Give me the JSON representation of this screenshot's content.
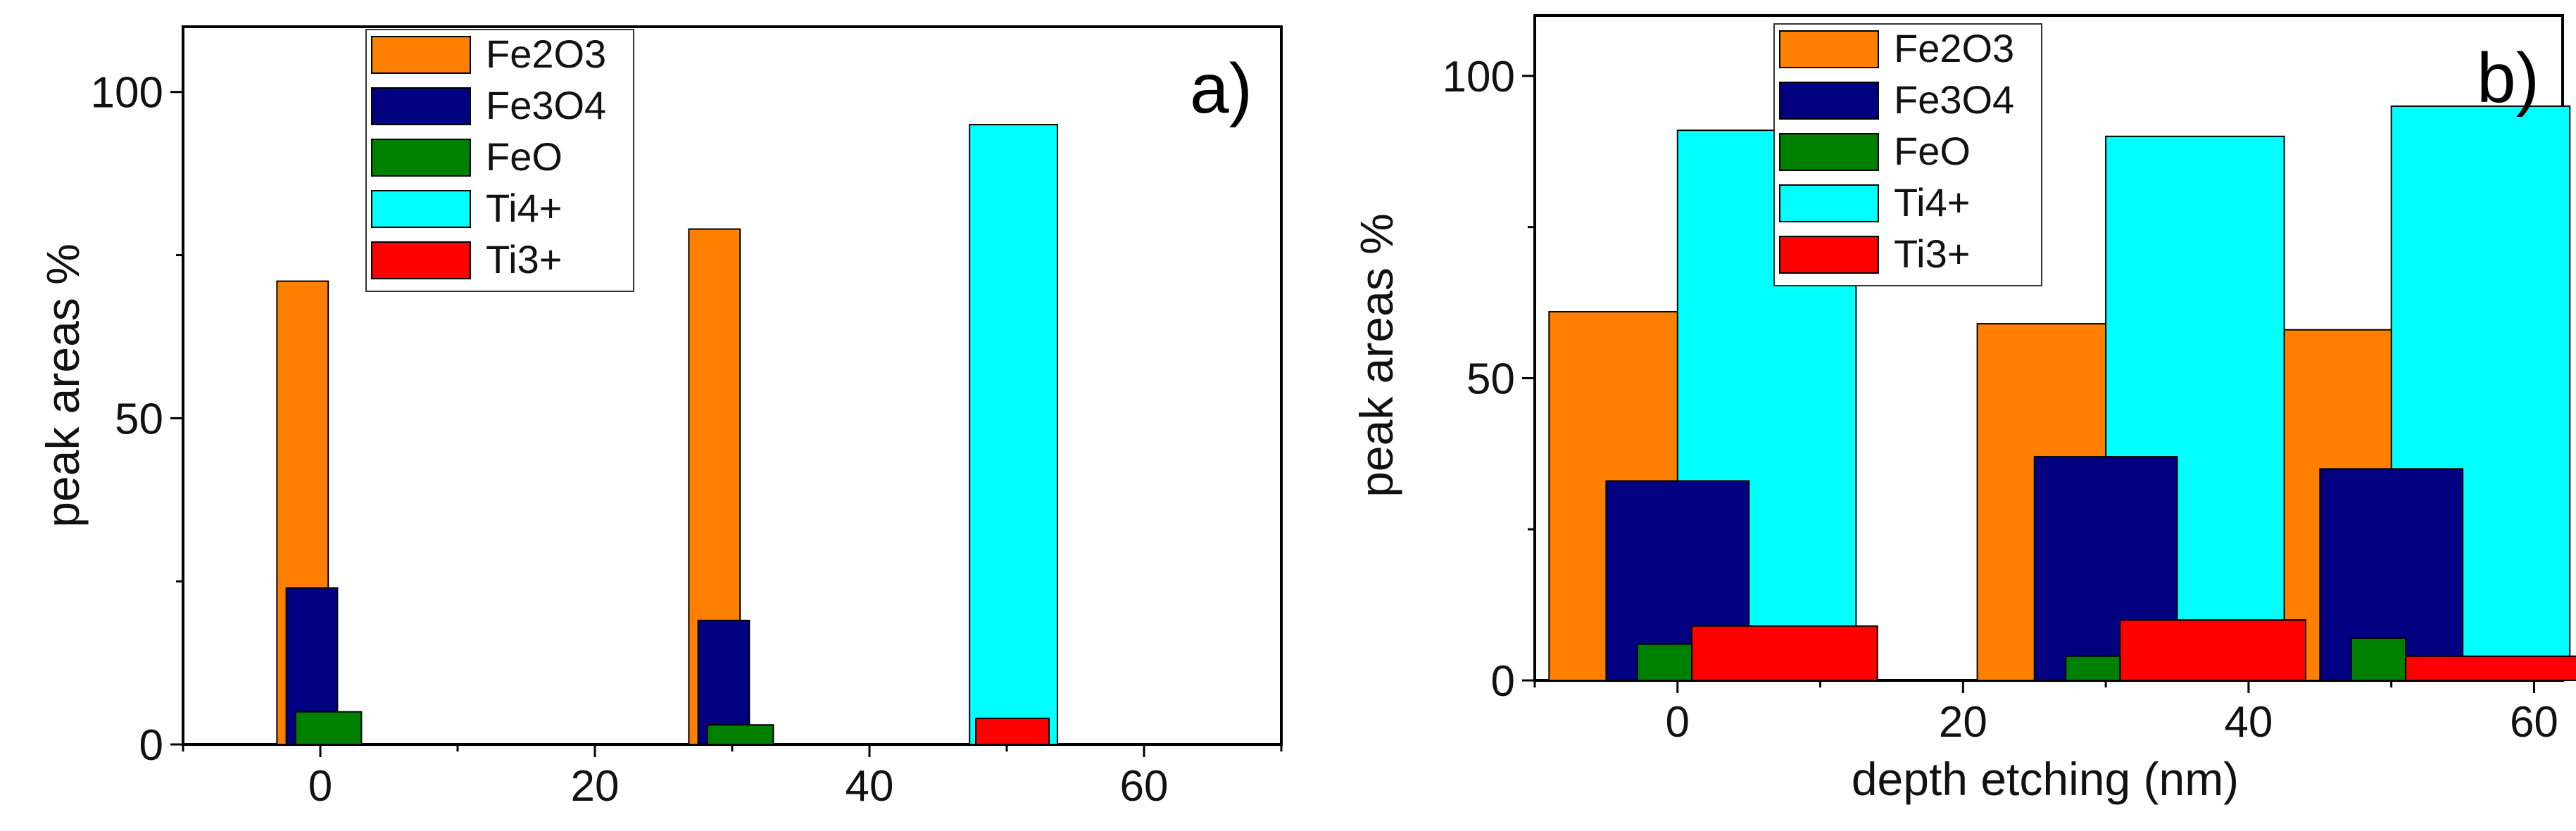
{
  "colors": {
    "Fe2O3": "#ff8000",
    "Fe3O4": "#000080",
    "FeO": "#008000",
    "Ti4+": "#00ffff",
    "Ti3+": "#ff0000"
  },
  "chart_data": [
    {
      "type": "bar",
      "panel_label": "a)",
      "title": "",
      "xlabel": "",
      "ylabel": "peak areas %",
      "xlim": [
        -10,
        70
      ],
      "ylim": [
        0,
        110
      ],
      "xticks": [
        0,
        20,
        40,
        60
      ],
      "yticks": [
        0,
        50,
        100
      ],
      "legend_position": "top-center",
      "series": [
        {
          "name": "Fe2O3",
          "x": [
            0,
            30
          ],
          "values": [
            71,
            79
          ]
        },
        {
          "name": "Fe3O4",
          "x": [
            0,
            30
          ],
          "values": [
            24,
            19
          ]
        },
        {
          "name": "FeO",
          "x": [
            0,
            30
          ],
          "values": [
            5,
            3
          ]
        },
        {
          "name": "Ti4+",
          "x": [
            50
          ],
          "values": [
            95
          ]
        },
        {
          "name": "Ti3+",
          "x": [
            50
          ],
          "values": [
            4
          ]
        }
      ]
    },
    {
      "type": "bar",
      "panel_label": "b)",
      "title": "",
      "xlabel": "depth etching (nm)",
      "ylabel": "peak areas %",
      "xlim": [
        -10,
        62
      ],
      "ylim": [
        0,
        110
      ],
      "xticks": [
        0,
        20,
        40,
        60
      ],
      "yticks": [
        0,
        50,
        100
      ],
      "legend_position": "top-center",
      "series": [
        {
          "name": "Fe2O3",
          "x": [
            0,
            30,
            50
          ],
          "values": [
            61,
            59,
            58
          ]
        },
        {
          "name": "Fe3O4",
          "x": [
            0,
            30,
            50
          ],
          "values": [
            33,
            37,
            35
          ]
        },
        {
          "name": "FeO",
          "x": [
            0,
            30,
            50
          ],
          "values": [
            6,
            4,
            7
          ]
        },
        {
          "name": "Ti4+",
          "x": [
            0,
            30,
            50
          ],
          "values": [
            91,
            90,
            95
          ]
        },
        {
          "name": "Ti3+",
          "x": [
            0,
            30,
            50
          ],
          "values": [
            9,
            10,
            4
          ]
        }
      ]
    }
  ]
}
